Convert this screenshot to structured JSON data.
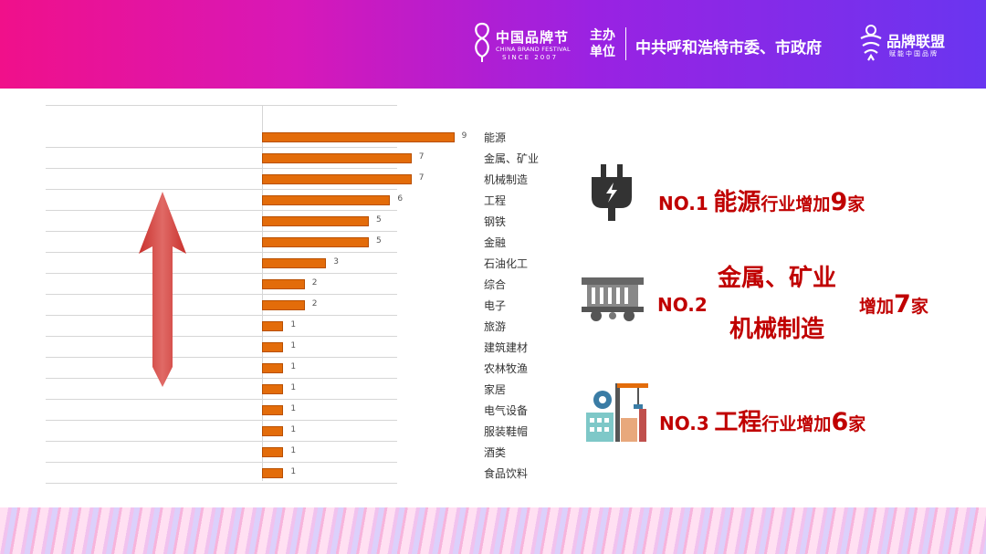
{
  "header": {
    "festival_name": "中国品牌节",
    "festival_en": "CHINA BRAND FESTIVAL",
    "festival_since": "SINCE 2007",
    "organizer_label": "主办单位",
    "organizer_name": "中共呼和浩特市委、市政府",
    "alliance_name": "品牌联盟",
    "alliance_sub": "赋能中国品牌"
  },
  "chart_data": {
    "type": "bar",
    "orientation": "horizontal",
    "categories": [
      "能源",
      "金属、矿业",
      "机械制造",
      "工程",
      "钢铁",
      "金融",
      "石油化工",
      "综合",
      "电子",
      "旅游",
      "建筑建材",
      "农林牧渔",
      "家居",
      "电气设备",
      "服装鞋帽",
      "酒类",
      "食品饮料"
    ],
    "values": [
      9,
      7,
      7,
      6,
      5,
      5,
      3,
      2,
      2,
      1,
      1,
      1,
      1,
      1,
      1,
      1,
      1
    ],
    "bar_color": "#e36c0a",
    "xlim": [
      0,
      9
    ],
    "grid": true,
    "data_labels": true
  },
  "rankings": [
    {
      "no": "NO.1",
      "industry": "能源",
      "suffix": "行业增加",
      "count": "9",
      "unit": "家",
      "icon": "plug-icon"
    },
    {
      "no": "NO.2",
      "industry_line1": "金属、矿业",
      "industry_line2": "机械制造",
      "suffix": "增加",
      "count": "7",
      "unit": "家",
      "icon": "mine-cart-icon"
    },
    {
      "no": "NO.3",
      "industry": "工程",
      "suffix": "行业增加",
      "count": "6",
      "unit": "家",
      "icon": "factory-crane-icon"
    }
  ],
  "colors": {
    "accent_red": "#c00000",
    "bar_orange": "#e36c0a",
    "arrow_red": "#d9534f"
  }
}
